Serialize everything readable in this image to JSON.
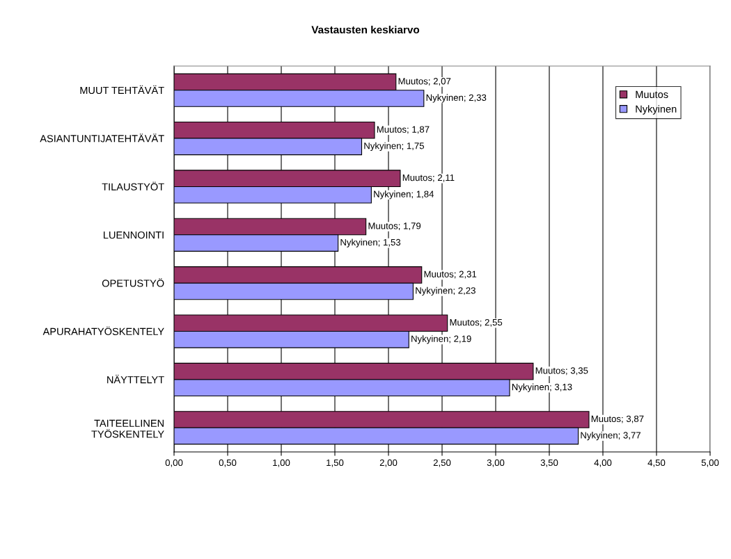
{
  "chart_data": {
    "type": "bar",
    "orientation": "horizontal",
    "title": "Vastausten keskiarvo",
    "categories": [
      "MUUT TEHTÄVÄT",
      "ASIANTUNTIJATEHTÄVÄT",
      "TILAUSTYÖT",
      "LUENNOINTI",
      "OPETUSTYÖ",
      "APURAHATYÖSKENTELY",
      "NÄYTTELYT",
      "TAITEELLINEN\nTYÖSKENTELY"
    ],
    "series": [
      {
        "name": "Muutos",
        "color": "#993366",
        "values": [
          2.07,
          1.87,
          2.11,
          1.79,
          2.31,
          2.55,
          3.35,
          3.87
        ],
        "value_labels": [
          "Muutos; 2,07",
          "Muutos; 1,87",
          "Muutos; 2,11",
          "Muutos; 1,79",
          "Muutos; 2,31",
          "Muutos; 2,55",
          "Muutos; 3,35",
          "Muutos; 3,87"
        ]
      },
      {
        "name": "Nykyinen",
        "color": "#9999ff",
        "values": [
          2.33,
          1.75,
          1.84,
          1.53,
          2.23,
          2.19,
          3.13,
          3.77
        ],
        "value_labels": [
          "Nykyinen; 2,33",
          "Nykyinen; 1,75",
          "Nykyinen; 1,84",
          "Nykyinen; 1,53",
          "Nykyinen; 2,23",
          "Nykyinen; 2,19",
          "Nykyinen; 3,13",
          "Nykyinen; 3,77"
        ]
      }
    ],
    "xlim": [
      0,
      5
    ],
    "xticks": [
      {
        "value": 0,
        "label": "0,00"
      },
      {
        "value": 0.5,
        "label": "0,50"
      },
      {
        "value": 1,
        "label": "1,00"
      },
      {
        "value": 1.5,
        "label": "1,50"
      },
      {
        "value": 2,
        "label": "2,00"
      },
      {
        "value": 2.5,
        "label": "2,50"
      },
      {
        "value": 3,
        "label": "3,00"
      },
      {
        "value": 3.5,
        "label": "3,50"
      },
      {
        "value": 4,
        "label": "4,00"
      },
      {
        "value": 4.5,
        "label": "4,50"
      },
      {
        "value": 5,
        "label": "5,00"
      }
    ],
    "grid": "x",
    "legend": "top right"
  }
}
